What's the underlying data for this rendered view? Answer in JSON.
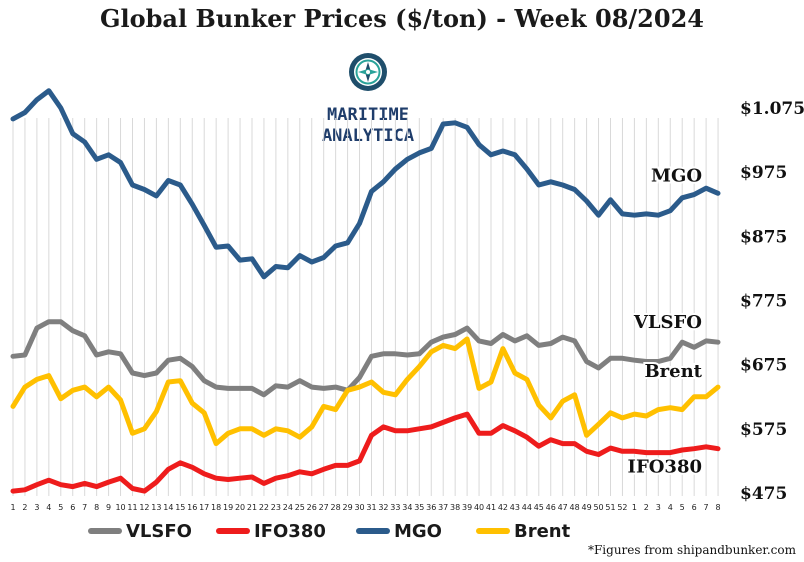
{
  "chart_data": {
    "type": "line",
    "title": "Global Bunker Prices ($/ton) -  Week 08/2024",
    "x_tick_labels": [
      "1",
      "2",
      "3",
      "4",
      "5",
      "6",
      "7",
      "8",
      "9",
      "10",
      "11",
      "12",
      "13",
      "14",
      "15",
      "16",
      "17",
      "18",
      "19",
      "20",
      "21",
      "22",
      "23",
      "24",
      "25",
      "26",
      "27",
      "28",
      "29",
      "30",
      "31",
      "32",
      "33",
      "34",
      "35",
      "36",
      "37",
      "38",
      "39",
      "40",
      "41",
      "42",
      "43",
      "44",
      "45",
      "46",
      "47",
      "48",
      "49",
      "50",
      "51",
      "52",
      "1",
      "2",
      "3",
      "4",
      "5",
      "6",
      "7",
      "8"
    ],
    "y_ticks": [
      "$1.075",
      "$975",
      "$875",
      "$775",
      "$675",
      "$575",
      "$475"
    ],
    "y_tick_values": [
      1075,
      975,
      875,
      775,
      675,
      575,
      475
    ],
    "ylim": [
      475,
      1075
    ],
    "series": [
      {
        "name": "MGO",
        "color": "#2b5b8b",
        "values": [
          1058,
          1068,
          1088,
          1102,
          1075,
          1035,
          1022,
          995,
          1002,
          990,
          955,
          948,
          938,
          962,
          955,
          925,
          892,
          858,
          860,
          838,
          840,
          812,
          828,
          826,
          845,
          835,
          842,
          860,
          865,
          895,
          945,
          960,
          980,
          995,
          1005,
          1012,
          1050,
          1052,
          1045,
          1018,
          1002,
          1008,
          1002,
          980,
          955,
          960,
          955,
          948,
          930,
          908,
          932,
          910,
          908,
          910,
          908,
          915,
          935,
          940,
          950,
          942
        ]
      },
      {
        "name": "VLSFO",
        "color": "#7f7f7f",
        "values": [
          688,
          690,
          732,
          742,
          742,
          728,
          720,
          690,
          695,
          692,
          662,
          658,
          662,
          682,
          685,
          672,
          650,
          640,
          638,
          638,
          638,
          628,
          642,
          640,
          650,
          640,
          638,
          640,
          635,
          655,
          688,
          692,
          692,
          690,
          692,
          710,
          718,
          722,
          732,
          712,
          708,
          722,
          712,
          720,
          705,
          708,
          718,
          712,
          680,
          670,
          685,
          685,
          682,
          680,
          680,
          685,
          710,
          702,
          712,
          710
        ]
      },
      {
        "name": "IFO380",
        "color": "#ee1c1c",
        "values": [
          478,
          480,
          488,
          495,
          488,
          485,
          490,
          485,
          492,
          498,
          482,
          478,
          492,
          512,
          522,
          515,
          505,
          498,
          496,
          498,
          500,
          490,
          498,
          502,
          508,
          505,
          512,
          518,
          518,
          525,
          565,
          578,
          572,
          572,
          575,
          578,
          585,
          592,
          598,
          568,
          568,
          580,
          572,
          562,
          548,
          558,
          552,
          552,
          540,
          535,
          545,
          540,
          540,
          538,
          538,
          538,
          542,
          544,
          547,
          544
        ]
      },
      {
        "name": "Brent",
        "color": "#ffc000",
        "values": [
          610,
          640,
          652,
          658,
          622,
          635,
          640,
          625,
          640,
          620,
          568,
          575,
          602,
          648,
          650,
          615,
          600,
          552,
          568,
          575,
          575,
          565,
          575,
          572,
          562,
          578,
          610,
          605,
          635,
          640,
          648,
          632,
          628,
          652,
          672,
          695,
          705,
          700,
          715,
          638,
          648,
          700,
          662,
          652,
          612,
          592,
          618,
          628,
          565,
          582,
          600,
          592,
          598,
          595,
          605,
          608,
          605,
          625,
          625,
          640
        ]
      }
    ],
    "end_labels": [
      "MGO",
      "VLSFO",
      "Brent",
      "IFO380"
    ],
    "legend": [
      "VLSFO",
      "IFO380",
      "MGO",
      "Brent"
    ],
    "legend_position": "bottom",
    "grid": "vertical"
  },
  "logo": {
    "line1": "MARITIME",
    "line2": "ANALYTICA"
  },
  "footnote": "*Figures from shipandbunker.com"
}
